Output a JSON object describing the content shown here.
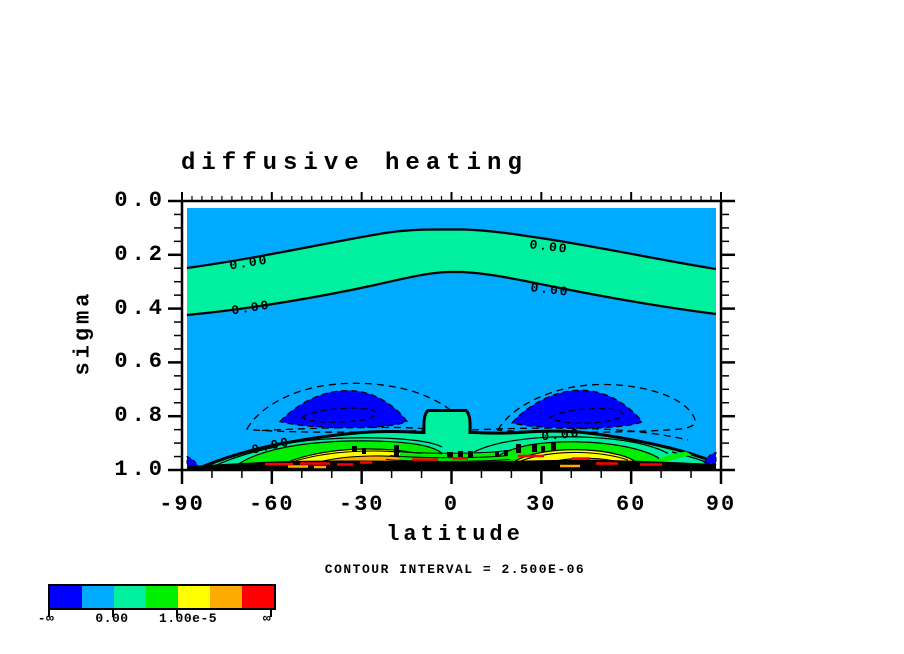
{
  "title": "diffusive heating",
  "y_axis": {
    "label": "sigma",
    "ticks": [
      "0.0",
      "0.2",
      "0.4",
      "0.6",
      "0.8",
      "1.0"
    ]
  },
  "x_axis": {
    "label": "latitude",
    "ticks": [
      "-90",
      "-60",
      "-30",
      "0",
      "30",
      "60",
      "90"
    ]
  },
  "caption": "CONTOUR INTERVAL = 2.500E-06",
  "contour_label": "0.00",
  "colorbar": {
    "colors": [
      "#0000ff",
      "#00aaff",
      "#00f0a0",
      "#00ee00",
      "#ffff00",
      "#ffaa00",
      "#ff0000"
    ],
    "labels": [
      "-∞",
      "0.00",
      "1.00e-5",
      "∞"
    ]
  },
  "chart_data": {
    "type": "filled-contour",
    "title": "diffusive heating",
    "xlabel": "latitude",
    "ylabel": "sigma",
    "xlim": [
      -90,
      90
    ],
    "ylim_top_to_bottom": [
      0.0,
      1.0
    ],
    "x_ticks": [
      -90,
      -60,
      -30,
      0,
      30,
      60,
      90
    ],
    "y_ticks": [
      0.0,
      0.2,
      0.4,
      0.6,
      0.8,
      1.0
    ],
    "contour_interval": 2.5e-06,
    "zero_contours_labeled": "0.00",
    "colorbar_breakpoints": {
      "min": "-infinity",
      "zero_boundary": 0.0,
      "labeled_mid": 1e-05,
      "max": "infinity"
    },
    "palette_low_to_high": [
      "#0000ff",
      "#00aaff",
      "#00f0a0",
      "#00ee00",
      "#ffff00",
      "#ffaa00",
      "#ff0000"
    ],
    "negative_contours_style": "dashed",
    "features": [
      {
        "name": "weak positive band aloft",
        "description": "band between two 0.00 contours spanning all latitudes (mint fill, 0 to +2.5e-6)",
        "sigma_top": {
          "at_poles": 0.25,
          "at_equator": 0.11
        },
        "sigma_bottom": {
          "at_poles": 0.43,
          "at_equator": 0.26
        }
      },
      {
        "name": "negative minima cells",
        "description": "closed negative anomalies below about -5e-6 (blue fill, dashed outlines)",
        "locations": [
          {
            "latitude": -40,
            "sigma": 0.79
          },
          {
            "latitude": 40,
            "sigma": 0.78
          }
        ]
      },
      {
        "name": "equatorial positive column",
        "description": "0.00 contour plateau rising to sigma 0.78 within about ±8 latitude"
      },
      {
        "name": "near-surface heating maxima",
        "description": "strong positive heating exceeding 1e-5 (yellow/orange/red bands) near sigma 0.95",
        "locations": [
          {
            "latitude": -42,
            "sigma": 0.95
          },
          {
            "latitude": 42,
            "sigma": 0.94
          }
        ]
      },
      {
        "name": "surface layer",
        "description": "densely packed contours rendered as a solid black band at sigma 0.97-1.0 across all latitudes"
      }
    ],
    "background_value_range": "-2.5e-6 to 0 (light blue)"
  }
}
